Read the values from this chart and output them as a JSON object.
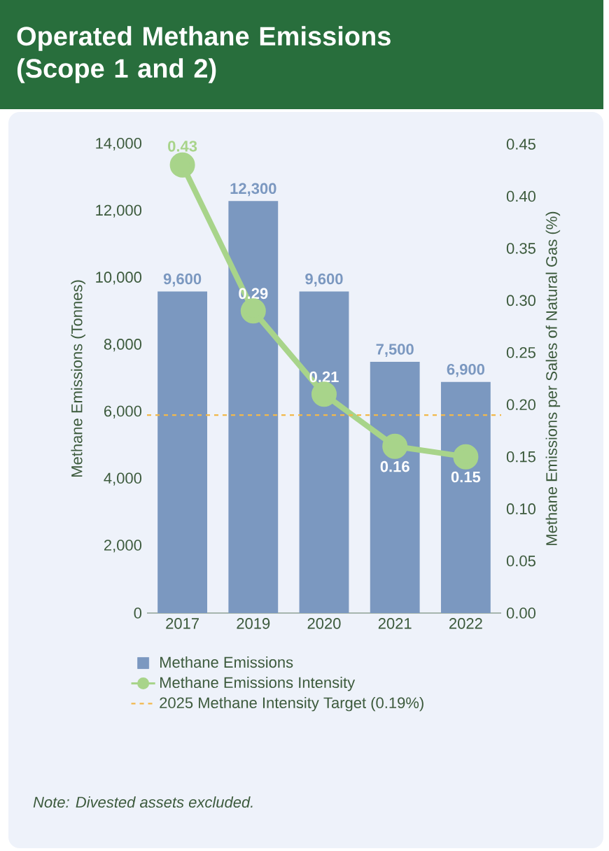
{
  "chart_data": {
    "type": "bar",
    "title": "Operated Methane Emissions (Scope 1 and 2)",
    "ylabel": "Methane Emissions (Tonnes)",
    "y2label": "Methane Emissions per Sales of Natural Gas (%)",
    "categories": [
      "2017",
      "2019",
      "2020",
      "2021",
      "2022"
    ],
    "series": [
      {
        "name": "Methane Emissions",
        "color": "#7b98c0",
        "values": [
          9600,
          12300,
          9600,
          7500,
          6900
        ],
        "value_labels": [
          "9,600",
          "12,300",
          "9,600",
          "7,500",
          "6,900"
        ]
      },
      {
        "name": "Methane Emissions Intensity",
        "type": "line",
        "axis": "y2",
        "color": "#a8d48a",
        "marker": "circle",
        "line_style": "solid",
        "values": [
          0.43,
          0.29,
          0.21,
          0.16,
          0.15
        ],
        "value_labels": [
          "0.43",
          "0.29",
          "0.21",
          "0.16",
          "0.15"
        ]
      }
    ],
    "ylim": [
      0,
      14000
    ],
    "yticks": [
      0,
      {
        "value": 2000,
        "label": "2,000"
      },
      {
        "value": 4000,
        "label": "4,000"
      },
      {
        "value": 6000,
        "label": "6,000"
      },
      {
        "value": 8000,
        "label": "8,000"
      },
      {
        "value": 10000,
        "label": "10,000"
      },
      {
        "value": 12000,
        "label": "12,000"
      },
      {
        "value": 14000,
        "label": "14,000"
      }
    ],
    "y2lim": [
      0,
      0.45
    ],
    "y2ticks": [
      {
        "value": 0,
        "label": "0.00"
      },
      0.05,
      {
        "value": 0.1,
        "label": "0.10"
      },
      0.15,
      {
        "value": 0.2,
        "label": "0.20"
      },
      0.25,
      {
        "value": 0.3,
        "label": "0.30"
      },
      0.35,
      {
        "value": 0.4,
        "label": "0.40"
      },
      0.45
    ],
    "ref_lines": [
      {
        "axis": "y2",
        "value": 0.19,
        "label": "2025 Methane Intensity Target (0.19%)",
        "color": "#f2b84b",
        "line_style": "dashed"
      }
    ],
    "legend": "bottom",
    "annotations": [
      "Note: Divested assets excluded."
    ]
  }
}
